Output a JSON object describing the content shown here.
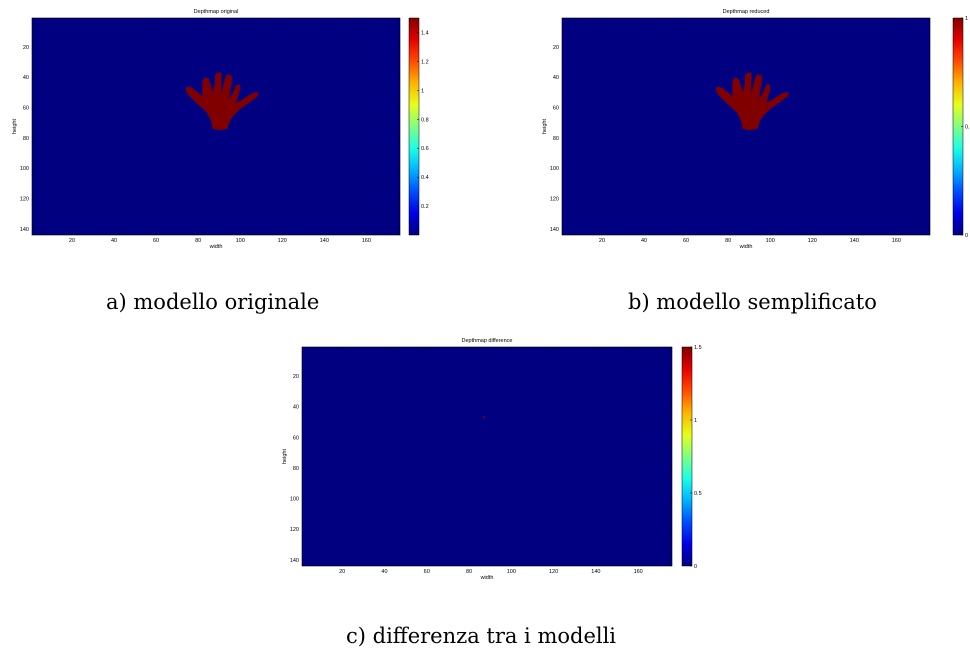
{
  "chart_data": [
    {
      "type": "heatmap",
      "title": "Depthmap original",
      "xlabel": "width",
      "ylabel": "height",
      "xlim": [
        1,
        176
      ],
      "ylim": [
        144,
        1
      ],
      "x_ticks": [
        "20",
        "40",
        "60",
        "80",
        "100",
        "120",
        "140",
        "160"
      ],
      "y_ticks": [
        "20",
        "40",
        "60",
        "80",
        "100",
        "120",
        "140"
      ],
      "colorbar": {
        "min": 0,
        "max": 1.5,
        "ticks": [
          "0.2",
          "0.4",
          "0.6",
          "0.8",
          "1",
          "1.2",
          "1.4"
        ]
      },
      "colormap": "jet",
      "background_value": 0,
      "object": {
        "label": "hand",
        "value": 1.5,
        "x_range": [
          80,
          100
        ],
        "y_range": [
          38,
          75
        ]
      },
      "caption": "a) modello originale"
    },
    {
      "type": "heatmap",
      "title": "Depthmap reduced",
      "xlabel": "width",
      "ylabel": "height",
      "xlim": [
        1,
        176
      ],
      "ylim": [
        144,
        1
      ],
      "x_ticks": [
        "20",
        "40",
        "60",
        "80",
        "100",
        "120",
        "140",
        "160"
      ],
      "y_ticks": [
        "20",
        "40",
        "60",
        "80",
        "100",
        "120",
        "140"
      ],
      "colorbar": {
        "min": 0,
        "max": 1,
        "ticks": [
          "0",
          "0.5",
          "1"
        ]
      },
      "colormap": "jet",
      "background_value": 0,
      "object": {
        "label": "hand",
        "value": 1,
        "x_range": [
          80,
          100
        ],
        "y_range": [
          38,
          75
        ]
      },
      "caption": "b) modello semplificato"
    },
    {
      "type": "heatmap",
      "title": "Depthmap difference",
      "xlabel": "width",
      "ylabel": "height",
      "xlim": [
        1,
        176
      ],
      "ylim": [
        144,
        1
      ],
      "x_ticks": [
        "20",
        "40",
        "60",
        "80",
        "100",
        "120",
        "140",
        "160"
      ],
      "y_ticks": [
        "20",
        "40",
        "60",
        "80",
        "100",
        "120",
        "140"
      ],
      "colorbar": {
        "min": 0,
        "max": 1.5,
        "ticks": [
          "0",
          "0.5",
          "1",
          "1.5"
        ]
      },
      "colormap": "jet",
      "background_value": 0,
      "hot_pixels": [
        {
          "x": 87,
          "y": 47,
          "value": 1.5
        }
      ],
      "caption": "c) differenza tra i modelli"
    }
  ]
}
